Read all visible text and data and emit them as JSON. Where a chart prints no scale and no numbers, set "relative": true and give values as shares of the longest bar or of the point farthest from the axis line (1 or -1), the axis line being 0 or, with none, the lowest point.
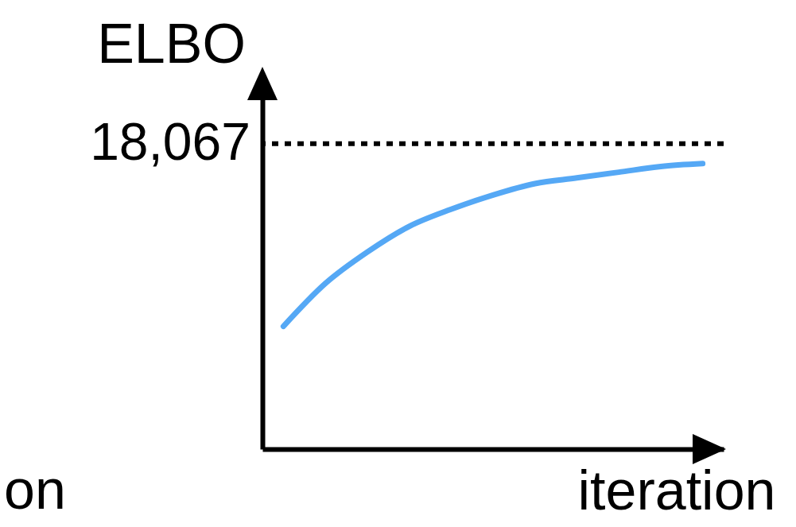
{
  "chart_data": {
    "type": "line",
    "relative": true,
    "ylabel": "ELBO",
    "xlabel": "iteration",
    "categories": [
      null,
      null,
      null,
      null,
      null,
      null,
      null,
      null,
      null,
      null,
      null
    ],
    "series": [
      {
        "color": "#55a8f5",
        "values": [
          0.43,
          0.58,
          0.69,
          0.78,
          0.84,
          0.89,
          0.93,
          0.95,
          0.97,
          0.99,
          1
        ]
      }
    ],
    "ref_lines": [
      {
        "axis": "y",
        "value": 1.07,
        "color": "#000000",
        "line_style": "dotted"
      }
    ],
    "annotations": [
      "18,067",
      "on"
    ]
  }
}
